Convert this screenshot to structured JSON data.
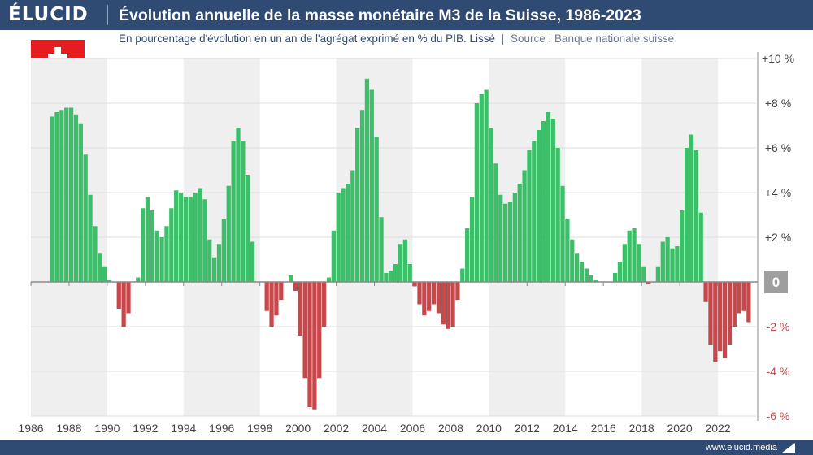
{
  "header": {
    "logo": "ÉLUCID",
    "title": "Évolution annuelle de la masse monétaire M3 de la Suisse, 1986-2023",
    "subtitle": "En pourcentage d'évolution en un an de l'agrégat exprimé en % du PIB. Lissé",
    "separator": "|",
    "source": "Source : Banque nationale suisse"
  },
  "footer": {
    "site": "www.elucid.media"
  },
  "flag": {
    "country": "Suisse",
    "color": "#e41e20"
  },
  "colors": {
    "positive": "#3dbf6a",
    "negative": "#c8474a",
    "band": "#efefef",
    "header": "#2f4a73",
    "zero_badge": "#9e9e9e"
  },
  "chart_data": {
    "type": "bar",
    "x_start": 1987.0,
    "x_step": 0.25,
    "values": [
      7.4,
      7.6,
      7.7,
      7.8,
      7.8,
      7.5,
      7.1,
      5.7,
      3.9,
      2.5,
      1.3,
      0.7,
      0.1,
      0.0,
      -1.2,
      -2.0,
      -1.4,
      0.0,
      0.2,
      3.3,
      3.8,
      3.2,
      2.3,
      2.0,
      2.5,
      3.3,
      4.1,
      4.0,
      3.8,
      3.8,
      4.0,
      4.2,
      3.7,
      1.9,
      1.1,
      1.7,
      2.8,
      4.3,
      6.3,
      6.9,
      6.3,
      4.8,
      1.8,
      0.0,
      0.0,
      -1.3,
      -2.0,
      -1.5,
      -0.8,
      0.0,
      0.3,
      -0.4,
      -2.4,
      -4.3,
      -5.6,
      -5.7,
      -4.3,
      -2.0,
      0.2,
      2.3,
      4.0,
      4.2,
      4.4,
      5.0,
      6.9,
      7.7,
      9.1,
      8.6,
      6.5,
      2.9,
      0.4,
      0.5,
      0.8,
      1.7,
      1.9,
      0.8,
      -0.2,
      -1.0,
      -1.5,
      -1.3,
      -1.0,
      -1.4,
      -1.9,
      -2.1,
      -2.0,
      -0.8,
      0.6,
      2.4,
      3.8,
      8.0,
      8.4,
      8.6,
      6.9,
      5.3,
      3.9,
      3.5,
      3.6,
      4.0,
      4.4,
      5.0,
      5.9,
      6.3,
      6.8,
      7.2,
      7.6,
      7.3,
      6.0,
      4.3,
      2.8,
      1.9,
      1.3,
      0.9,
      0.6,
      0.3,
      0.1,
      0.0,
      0.0,
      0.0,
      0.4,
      0.9,
      1.7,
      2.3,
      2.4,
      1.7,
      0.7,
      -0.1,
      0.0,
      0.7,
      1.8,
      2.0,
      1.5,
      1.6,
      3.2,
      6.0,
      6.6,
      5.9,
      3.1,
      -0.9,
      -2.8,
      -3.6,
      -3.1,
      -3.4,
      -2.8,
      -2.0,
      -1.4,
      -1.3,
      -1.8
    ],
    "ylim": [
      -6,
      10
    ],
    "xlim": [
      1986,
      2024
    ],
    "y_ticks": [
      {
        "v": 10,
        "label": "+10 %"
      },
      {
        "v": 8,
        "label": "+8 %"
      },
      {
        "v": 6,
        "label": "+6 %"
      },
      {
        "v": 4,
        "label": "+4 %"
      },
      {
        "v": 2,
        "label": "+2 %"
      },
      {
        "v": -2,
        "label": "-2 %"
      },
      {
        "v": -4,
        "label": "-4 %"
      },
      {
        "v": -6,
        "label": "-6 %"
      }
    ],
    "zero_label": "0",
    "x_ticks": [
      "1986",
      "1988",
      "1990",
      "1992",
      "1994",
      "1996",
      "1998",
      "2000",
      "2002",
      "2004",
      "2006",
      "2008",
      "2010",
      "2012",
      "2014",
      "2016",
      "2018",
      "2020",
      "2022"
    ],
    "grid": true,
    "shaded_bands": true
  }
}
